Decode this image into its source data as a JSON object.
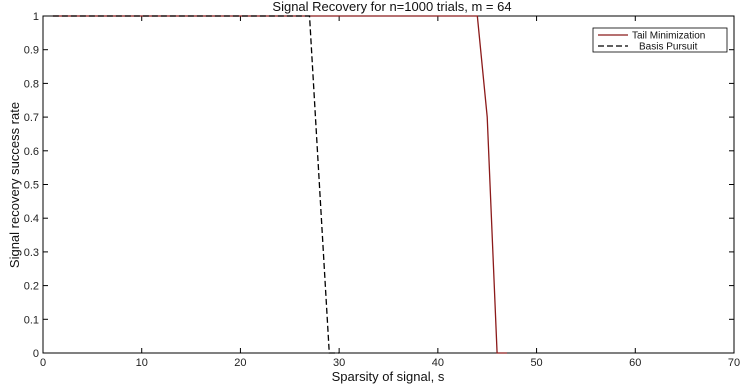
{
  "chart_data": {
    "type": "line",
    "title": "Signal Recovery for n=1000 trials, m = 64",
    "xlabel": "Sparsity of signal, s",
    "ylabel": "Signal recovery success rate",
    "xlim": [
      0,
      70
    ],
    "ylim": [
      0,
      1
    ],
    "xticks": [
      "0",
      "10",
      "20",
      "30",
      "40",
      "50",
      "60",
      "70"
    ],
    "yticks": [
      "0",
      "0.1",
      "0.2",
      "0.3",
      "0.4",
      "0.5",
      "0.6",
      "0.7",
      "0.8",
      "0.9",
      "1"
    ],
    "grid": false,
    "legend_position": "top-right",
    "series": [
      {
        "name": "Tail Minimization",
        "style": "solid",
        "color": "#8b1a1a",
        "x": [
          1,
          44,
          45,
          46,
          47
        ],
        "y": [
          1,
          1,
          0.7,
          0,
          0
        ]
      },
      {
        "name": "Basis Pursuit",
        "style": "dashed",
        "color": "#000000",
        "x": [
          1,
          27,
          28,
          29,
          30
        ],
        "y": [
          1,
          1,
          0.5,
          0,
          0
        ]
      }
    ]
  }
}
